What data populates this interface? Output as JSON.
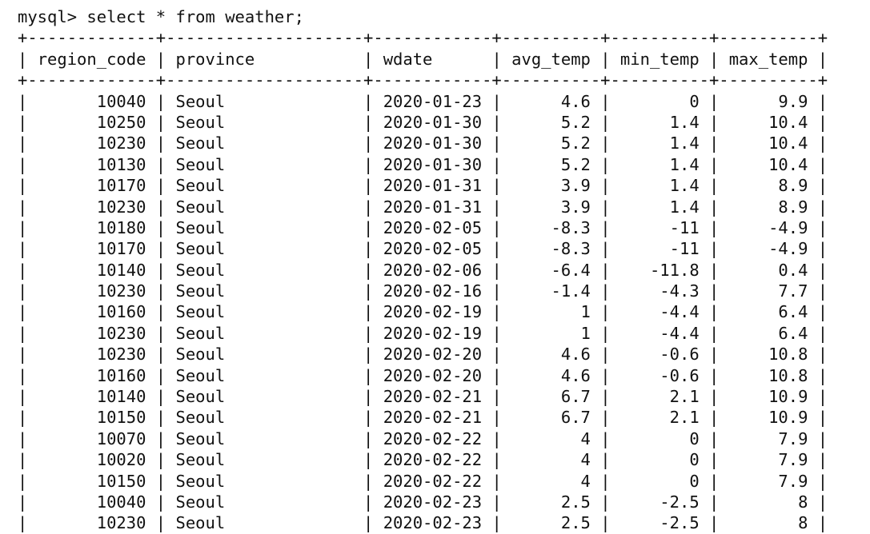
{
  "prompt": "mysql>",
  "command": "select * from weather;",
  "columns": [
    "region_code",
    "province",
    "wdate",
    "avg_temp",
    "min_temp",
    "max_temp"
  ],
  "rows": [
    [
      "10040",
      "Seoul",
      "2020-01-23",
      "4.6",
      "0",
      "9.9"
    ],
    [
      "10250",
      "Seoul",
      "2020-01-30",
      "5.2",
      "1.4",
      "10.4"
    ],
    [
      "10230",
      "Seoul",
      "2020-01-30",
      "5.2",
      "1.4",
      "10.4"
    ],
    [
      "10130",
      "Seoul",
      "2020-01-30",
      "5.2",
      "1.4",
      "10.4"
    ],
    [
      "10170",
      "Seoul",
      "2020-01-31",
      "3.9",
      "1.4",
      "8.9"
    ],
    [
      "10230",
      "Seoul",
      "2020-01-31",
      "3.9",
      "1.4",
      "8.9"
    ],
    [
      "10180",
      "Seoul",
      "2020-02-05",
      "-8.3",
      "-11",
      "-4.9"
    ],
    [
      "10170",
      "Seoul",
      "2020-02-05",
      "-8.3",
      "-11",
      "-4.9"
    ],
    [
      "10140",
      "Seoul",
      "2020-02-06",
      "-6.4",
      "-11.8",
      "0.4"
    ],
    [
      "10230",
      "Seoul",
      "2020-02-16",
      "-1.4",
      "-4.3",
      "7.7"
    ],
    [
      "10160",
      "Seoul",
      "2020-02-19",
      "1",
      "-4.4",
      "6.4"
    ],
    [
      "10230",
      "Seoul",
      "2020-02-19",
      "1",
      "-4.4",
      "6.4"
    ],
    [
      "10230",
      "Seoul",
      "2020-02-20",
      "4.6",
      "-0.6",
      "10.8"
    ],
    [
      "10160",
      "Seoul",
      "2020-02-20",
      "4.6",
      "-0.6",
      "10.8"
    ],
    [
      "10140",
      "Seoul",
      "2020-02-21",
      "6.7",
      "2.1",
      "10.9"
    ],
    [
      "10150",
      "Seoul",
      "2020-02-21",
      "6.7",
      "2.1",
      "10.9"
    ],
    [
      "10070",
      "Seoul",
      "2020-02-22",
      "4",
      "0",
      "7.9"
    ],
    [
      "10020",
      "Seoul",
      "2020-02-22",
      "4",
      "0",
      "7.9"
    ],
    [
      "10150",
      "Seoul",
      "2020-02-22",
      "4",
      "0",
      "7.9"
    ],
    [
      "10040",
      "Seoul",
      "2020-02-23",
      "2.5",
      "-2.5",
      "8"
    ],
    [
      "10230",
      "Seoul",
      "2020-02-23",
      "2.5",
      "-2.5",
      "8"
    ]
  ]
}
